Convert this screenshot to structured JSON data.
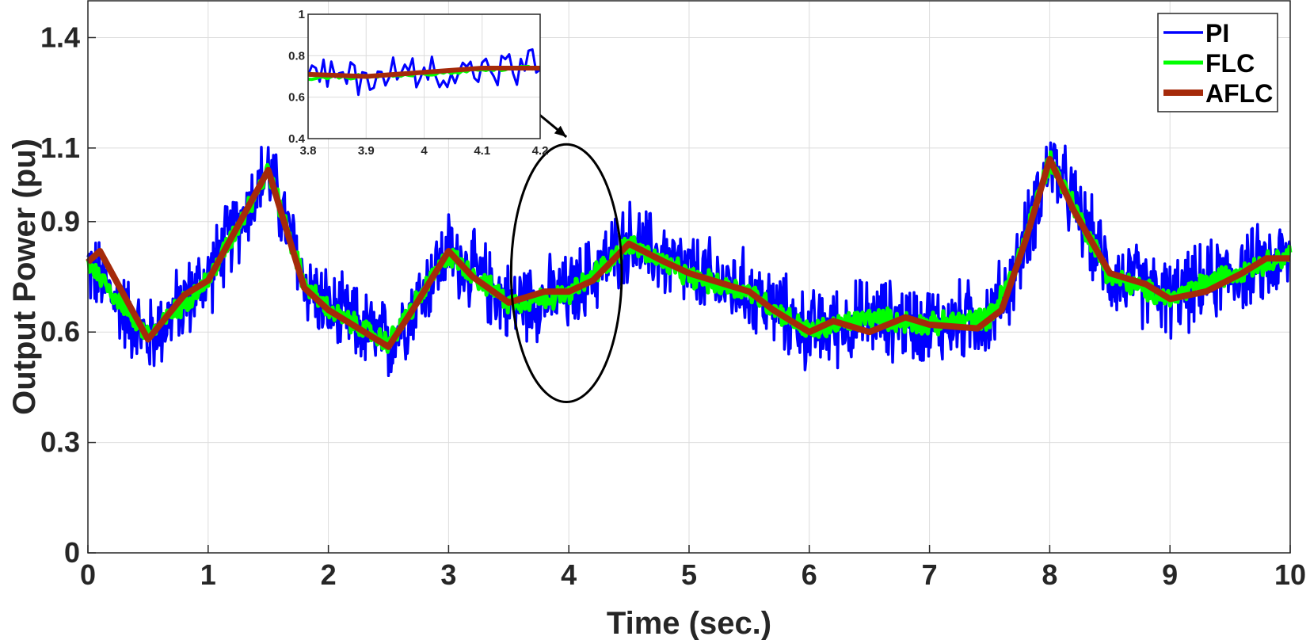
{
  "chart_data": {
    "type": "line",
    "title": "",
    "xlabel": "Time (sec.)",
    "ylabel": "Output Power (pu)",
    "xlim": [
      0,
      10
    ],
    "ylim": [
      0,
      1.5
    ],
    "xticks": [
      0,
      1,
      2,
      3,
      4,
      5,
      6,
      7,
      8,
      9,
      10
    ],
    "yticks": [
      0,
      0.3,
      0.6,
      0.9,
      1.1,
      1.4
    ],
    "grid": true,
    "legend_position": "top-right",
    "series": [
      {
        "name": "PI",
        "color": "#0000ff",
        "style": "noisy",
        "noise_amplitude": 0.13,
        "x": [
          0,
          0.5,
          1,
          1.5,
          1.8,
          2,
          2.5,
          3,
          3.5,
          4,
          4.5,
          5,
          5.5,
          6,
          6.5,
          7,
          7.5,
          7.7,
          8,
          8.5,
          9,
          9.5,
          10
        ],
        "y": [
          0.78,
          0.58,
          0.75,
          1.04,
          0.74,
          0.66,
          0.57,
          0.82,
          0.68,
          0.7,
          0.85,
          0.76,
          0.71,
          0.6,
          0.64,
          0.62,
          0.64,
          0.75,
          1.07,
          0.76,
          0.69,
          0.76,
          0.8
        ]
      },
      {
        "name": "FLC",
        "color": "#00ff00",
        "style": "noisy",
        "noise_amplitude": 0.035,
        "x": [
          0,
          0.5,
          1,
          1.5,
          1.8,
          2,
          2.5,
          3,
          3.5,
          4,
          4.5,
          5,
          5.5,
          6,
          6.5,
          7,
          7.5,
          7.7,
          8,
          8.5,
          9,
          9.5,
          10
        ],
        "y": [
          0.79,
          0.59,
          0.74,
          1.04,
          0.73,
          0.66,
          0.57,
          0.81,
          0.68,
          0.7,
          0.84,
          0.75,
          0.71,
          0.6,
          0.64,
          0.62,
          0.64,
          0.76,
          1.07,
          0.75,
          0.69,
          0.76,
          0.81
        ]
      },
      {
        "name": "AFLC",
        "color": "#a52a0a",
        "style": "smooth",
        "x": [
          0,
          0.1,
          0.5,
          0.8,
          1,
          1.5,
          1.8,
          2,
          2.5,
          2.7,
          3,
          3.2,
          3.5,
          3.8,
          4,
          4.2,
          4.5,
          4.8,
          5,
          5.3,
          5.5,
          5.7,
          6,
          6.2,
          6.5,
          6.8,
          7,
          7.4,
          7.6,
          7.8,
          8,
          8.2,
          8.5,
          8.8,
          9,
          9.3,
          9.6,
          9.8,
          10
        ],
        "y": [
          0.79,
          0.82,
          0.58,
          0.7,
          0.74,
          1.04,
          0.72,
          0.66,
          0.56,
          0.66,
          0.82,
          0.75,
          0.68,
          0.71,
          0.71,
          0.74,
          0.84,
          0.79,
          0.76,
          0.73,
          0.71,
          0.66,
          0.6,
          0.63,
          0.6,
          0.64,
          0.62,
          0.61,
          0.66,
          0.85,
          1.07,
          0.93,
          0.76,
          0.73,
          0.69,
          0.71,
          0.76,
          0.8,
          0.8
        ]
      }
    ],
    "inset": {
      "xlim": [
        3.8,
        4.2
      ],
      "ylim": [
        0.4,
        1.0
      ],
      "xticks": [
        3.8,
        3.9,
        4,
        4.1,
        4.2
      ],
      "yticks": [
        0.4,
        0.6,
        0.8,
        1
      ],
      "series": [
        {
          "name": "PI",
          "color": "#0000ff",
          "style": "noisy",
          "noise_amplitude": 0.12,
          "x": [
            3.8,
            3.9,
            4.0,
            4.1,
            4.2
          ],
          "y": [
            0.7,
            0.7,
            0.72,
            0.74,
            0.74
          ]
        },
        {
          "name": "FLC",
          "color": "#00ff00",
          "style": "noisy",
          "noise_amplitude": 0.012,
          "x": [
            3.8,
            3.9,
            4.0,
            4.1,
            4.2
          ],
          "y": [
            0.69,
            0.7,
            0.71,
            0.73,
            0.74
          ]
        },
        {
          "name": "AFLC",
          "color": "#a52a0a",
          "style": "smooth",
          "x": [
            3.8,
            3.9,
            4.0,
            4.1,
            4.2
          ],
          "y": [
            0.71,
            0.7,
            0.72,
            0.74,
            0.74
          ]
        }
      ]
    },
    "annotations": [
      {
        "type": "ellipse",
        "center": [
          3.98,
          0.76
        ],
        "rx": 0.46,
        "ry": 0.35
      },
      {
        "type": "arrow",
        "from": [
          3.72,
          1.2
        ],
        "to": [
          3.98,
          1.13
        ]
      }
    ]
  }
}
